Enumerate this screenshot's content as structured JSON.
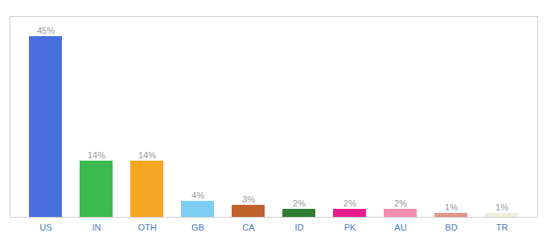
{
  "chart_data": {
    "type": "bar",
    "categories": [
      "US",
      "IN",
      "OTH",
      "GB",
      "CA",
      "ID",
      "PK",
      "AU",
      "BD",
      "TR"
    ],
    "values": [
      45,
      14,
      14,
      4,
      3,
      2,
      2,
      2,
      1,
      1
    ],
    "value_labels": [
      "45%",
      "14%",
      "14%",
      "4%",
      "3%",
      "2%",
      "2%",
      "2%",
      "1%",
      "1%"
    ],
    "colors": [
      "#4a6fdc",
      "#3dba4e",
      "#f5a623",
      "#7ecef4",
      "#c0622b",
      "#2e7d32",
      "#e91e8c",
      "#f48fb1",
      "#e8958a",
      "#f0eedc"
    ],
    "ylim": [
      0,
      50
    ],
    "yticks": [],
    "data_labels": true,
    "tick_labels": "x",
    "grid": false
  }
}
